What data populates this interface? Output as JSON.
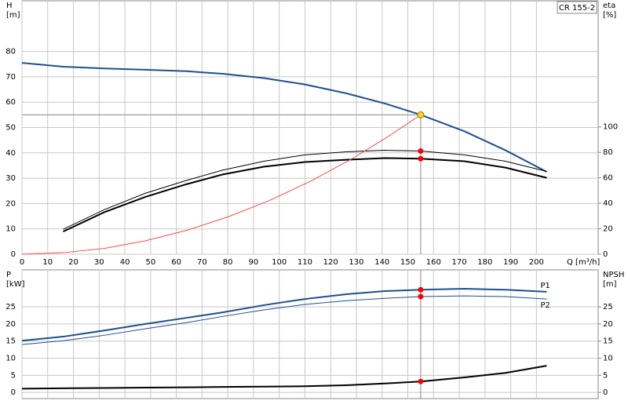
{
  "chart_data": [
    {
      "type": "line",
      "label": "CR 155-2",
      "xlabel": "Q [m³/h]",
      "ylabel": "H",
      "yunit": "[m]",
      "y2label": "eta",
      "y2unit": "[%]",
      "x": [
        0,
        16,
        32,
        48,
        64,
        78,
        94,
        110,
        126,
        141,
        155,
        172,
        188,
        204
      ],
      "xlim": [
        0,
        224
      ],
      "xticks": [
        0,
        10,
        20,
        30,
        40,
        50,
        60,
        70,
        80,
        90,
        100,
        110,
        120,
        130,
        140,
        150,
        160,
        170,
        180,
        190,
        200
      ],
      "ylim": [
        0,
        100
      ],
      "yticks": [
        0,
        10,
        20,
        30,
        40,
        50,
        60,
        70,
        80
      ],
      "y2lim": [
        0,
        199
      ],
      "y2ticks": [
        0,
        20,
        40,
        60,
        80,
        100
      ],
      "grid": true,
      "marker_color": "#ff0000",
      "duty_point": {
        "x": 155,
        "y": 55,
        "color": "#ffd21f"
      },
      "series": [
        {
          "color": "#1f4f8f",
          "width": 2,
          "values": [
            75.5,
            74,
            73.3,
            72.8,
            72.2,
            71.2,
            69.5,
            67,
            63.5,
            59.5,
            55,
            48.5,
            41,
            32.5
          ]
        },
        {
          "color": "#000000",
          "width": 1,
          "axis": "y2",
          "marker": true,
          "values": [
            null,
            19.6,
            35,
            47.9,
            58,
            66,
            73,
            78,
            80.4,
            81.6,
            81,
            78,
            73,
            65
          ]
        },
        {
          "color": "#000000",
          "width": 2,
          "axis": "y2",
          "marker": true,
          "values": [
            null,
            17.8,
            33,
            45,
            55,
            62.6,
            68.7,
            72.4,
            74.2,
            75.5,
            75,
            73,
            68,
            60
          ]
        },
        {
          "color": "#ff4a4a",
          "width": 1,
          "x": [
            0,
            16,
            32,
            48,
            64,
            80,
            96,
            112,
            128,
            142,
            155
          ],
          "values": [
            0,
            0.6,
            2.3,
            5.3,
            9.4,
            14.7,
            21.1,
            28.7,
            37.5,
            46.2,
            55
          ]
        }
      ]
    },
    {
      "type": "line",
      "ylabel": "P",
      "yunit": "[kW]",
      "y2label": "NPSH",
      "y2unit": "[m]",
      "x": [
        0,
        16,
        32,
        48,
        64,
        78,
        94,
        110,
        126,
        141,
        155,
        172,
        188,
        204
      ],
      "ylim": [
        -1.8,
        35.8
      ],
      "yticks": [
        0,
        5,
        10,
        15,
        20,
        25
      ],
      "y2lim": [
        -1.8,
        35.8
      ],
      "y2ticks": [
        0,
        5,
        10,
        15,
        20,
        25
      ],
      "grid": true,
      "series": [
        {
          "name": "P1",
          "color": "#1f4f8f",
          "width": 2,
          "marker": true,
          "values": [
            15.1,
            16.3,
            18.1,
            20,
            21.8,
            23.4,
            25.5,
            27.3,
            28.7,
            29.6,
            30,
            30.3,
            30,
            29.4
          ]
        },
        {
          "name": "P2",
          "color": "#1f4f8f",
          "width": 1,
          "marker": true,
          "values": [
            14,
            15.1,
            16.7,
            18.6,
            20.4,
            22.2,
            24.1,
            25.7,
            26.8,
            27.5,
            28,
            28.2,
            28,
            27.3
          ]
        },
        {
          "color": "#000000",
          "width": 2,
          "axis": "y2",
          "marker": true,
          "values": [
            1.1,
            1.2,
            1.3,
            1.4,
            1.5,
            1.6,
            1.7,
            1.8,
            2.1,
            2.6,
            3.2,
            4.4,
            5.7,
            7.8
          ]
        }
      ]
    }
  ]
}
